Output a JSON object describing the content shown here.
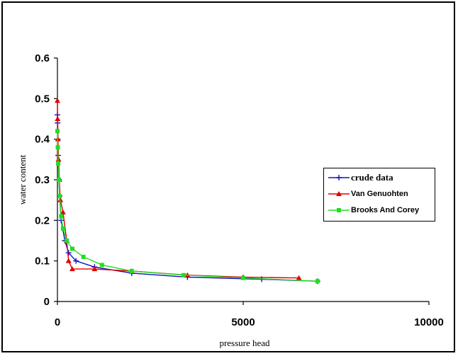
{
  "chart_data": {
    "type": "line",
    "xlabel": "pressure head",
    "ylabel": "water content",
    "xlim": [
      0,
      10000
    ],
    "ylim": [
      0,
      0.6
    ],
    "x_ticks": [
      "0",
      "5000",
      "10000"
    ],
    "y_ticks": [
      "0",
      "0.1",
      "0.2",
      "0.3",
      "0.4",
      "0.5",
      "0.6"
    ],
    "legend_position": "right-middle",
    "series": [
      {
        "name": "crude data",
        "color": "#1010c0",
        "marker": "plus",
        "points": [
          [
            0,
            0.46
          ],
          [
            5,
            0.44
          ],
          [
            10,
            0.4
          ],
          [
            20,
            0.36
          ],
          [
            40,
            0.3
          ],
          [
            60,
            0.26
          ],
          [
            100,
            0.2
          ],
          [
            200,
            0.15
          ],
          [
            300,
            0.12
          ],
          [
            500,
            0.1
          ],
          [
            1000,
            0.085
          ],
          [
            2000,
            0.07
          ],
          [
            3500,
            0.06
          ],
          [
            5500,
            0.055
          ],
          [
            7000,
            0.05
          ]
        ]
      },
      {
        "name": "Van Genuohten",
        "color": "#e00000",
        "marker": "triangle",
        "points": [
          [
            0,
            0.495
          ],
          [
            5,
            0.45
          ],
          [
            15,
            0.4
          ],
          [
            30,
            0.35
          ],
          [
            50,
            0.3
          ],
          [
            80,
            0.25
          ],
          [
            150,
            0.22
          ],
          [
            250,
            0.15
          ],
          [
            300,
            0.1
          ],
          [
            400,
            0.08
          ],
          [
            1000,
            0.08
          ],
          [
            2000,
            0.075
          ],
          [
            3500,
            0.065
          ],
          [
            5000,
            0.06
          ],
          [
            6500,
            0.058
          ]
        ]
      },
      {
        "name": "Brooks And Corey",
        "color": "#22dd22",
        "marker": "square",
        "points": [
          [
            0,
            0.42
          ],
          [
            10,
            0.38
          ],
          [
            20,
            0.34
          ],
          [
            40,
            0.3
          ],
          [
            60,
            0.26
          ],
          [
            100,
            0.21
          ],
          [
            150,
            0.18
          ],
          [
            250,
            0.15
          ],
          [
            400,
            0.13
          ],
          [
            700,
            0.11
          ],
          [
            1200,
            0.09
          ],
          [
            2000,
            0.075
          ],
          [
            3400,
            0.065
          ],
          [
            5000,
            0.058
          ],
          [
            7000,
            0.05
          ]
        ]
      }
    ]
  }
}
